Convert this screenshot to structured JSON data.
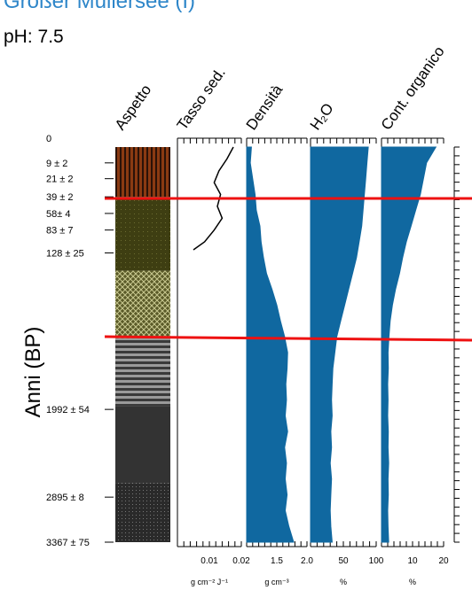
{
  "header": {
    "title": "Großer Müllersee (I)",
    "subtitle": "pH: 7.5"
  },
  "colors": {
    "fill": "#1068a0",
    "red_line": "#ee1111",
    "axis": "#000000"
  },
  "chart_data": {
    "type": "area",
    "title": "Großer Müllersee (I)",
    "subtitle": "pH: 7.5",
    "y_axis_label": "Anni (BP)",
    "age_ticks": [
      "0",
      "9 ± 2",
      "21 ± 2",
      "39 ± 2",
      "58± 4",
      "83 ± 7",
      "128 ± 25",
      "1992 ± 54",
      "2895 ± 8",
      "3367 ± 75"
    ],
    "red_lines_age_bp": [
      39,
      600
    ],
    "core_length_cm": 100,
    "aspetto": {
      "label": "Aspetto",
      "layers": [
        {
          "from": 0,
          "to": 12.6,
          "color": "#8a3a12",
          "pattern": "vertical-stripes"
        },
        {
          "from": 12.6,
          "to": 31.3,
          "color": "#3e3e12",
          "pattern": "dots"
        },
        {
          "from": 31.3,
          "to": 48.4,
          "color": "#5a5a28",
          "pattern": "crosshatch"
        },
        {
          "from": 48.4,
          "to": 65.5,
          "color": "#8a8a8a",
          "pattern": "horizontal-stripes"
        },
        {
          "from": 65.5,
          "to": 85.0,
          "color": "#333333",
          "pattern": "none"
        },
        {
          "from": 85.0,
          "to": 100,
          "color": "#2a2a2a",
          "pattern": "dots"
        }
      ]
    },
    "panels": [
      {
        "id": "tasso",
        "label": "Tasso sed.",
        "type": "line",
        "unit": "g cm-2 J-1",
        "xlim": [
          0,
          0.02
        ],
        "ticks": [
          "0.01",
          "0.02"
        ],
        "depth": [
          0,
          3,
          6,
          9,
          12,
          15,
          18,
          21,
          24,
          26
        ],
        "values": [
          0.0175,
          0.0155,
          0.013,
          0.0115,
          0.0135,
          0.0125,
          0.014,
          0.0115,
          0.0085,
          0.005
        ]
      },
      {
        "id": "densita",
        "label": "Densità",
        "type": "area",
        "unit": "g cm-3",
        "xlim": [
          1.0,
          2.0
        ],
        "ticks": [
          "1.5",
          "2.0"
        ],
        "depth": [
          0,
          4,
          8,
          12,
          16,
          20,
          24,
          28,
          32,
          36,
          40,
          44,
          48,
          52,
          56,
          60,
          64,
          68,
          72,
          76,
          80,
          84,
          88,
          92,
          96,
          100
        ],
        "values": [
          1.08,
          1.06,
          1.1,
          1.14,
          1.16,
          1.22,
          1.24,
          1.28,
          1.33,
          1.42,
          1.5,
          1.56,
          1.63,
          1.68,
          1.67,
          1.65,
          1.66,
          1.64,
          1.68,
          1.63,
          1.66,
          1.64,
          1.67,
          1.64,
          1.7,
          1.78
        ]
      },
      {
        "id": "h2o",
        "label": "H₂O",
        "type": "area",
        "unit": "%",
        "xlim": [
          0,
          100
        ],
        "ticks": [
          "50",
          "100"
        ],
        "depth": [
          0,
          4,
          8,
          12,
          16,
          20,
          24,
          28,
          32,
          36,
          40,
          44,
          48,
          52,
          56,
          60,
          64,
          68,
          72,
          76,
          80,
          84,
          88,
          92,
          96,
          100
        ],
        "values": [
          88,
          86,
          84,
          82,
          80,
          78,
          74,
          70,
          64,
          58,
          52,
          46,
          40,
          37,
          34,
          33,
          32,
          33,
          31,
          32,
          30,
          32,
          31,
          30,
          31,
          33
        ]
      },
      {
        "id": "organico",
        "label": "Cont. organico",
        "type": "area",
        "unit": "%",
        "xlim": [
          0,
          20
        ],
        "ticks": [
          "10",
          "20"
        ],
        "depth": [
          0,
          4,
          8,
          12,
          16,
          20,
          24,
          28,
          32,
          36,
          40,
          44,
          48,
          52,
          56,
          60,
          64,
          68,
          72,
          76,
          80,
          84,
          88,
          92,
          96,
          100
        ],
        "values": [
          17.5,
          14.5,
          13.5,
          12.5,
          11,
          9.5,
          8,
          6.8,
          5.8,
          4.5,
          3.5,
          2.8,
          2.4,
          2.1,
          2.2,
          2.0,
          2.1,
          2.0,
          2.2,
          2.1,
          2.3,
          2.1,
          2.2,
          2.0,
          2.1,
          2.3
        ]
      }
    ]
  }
}
